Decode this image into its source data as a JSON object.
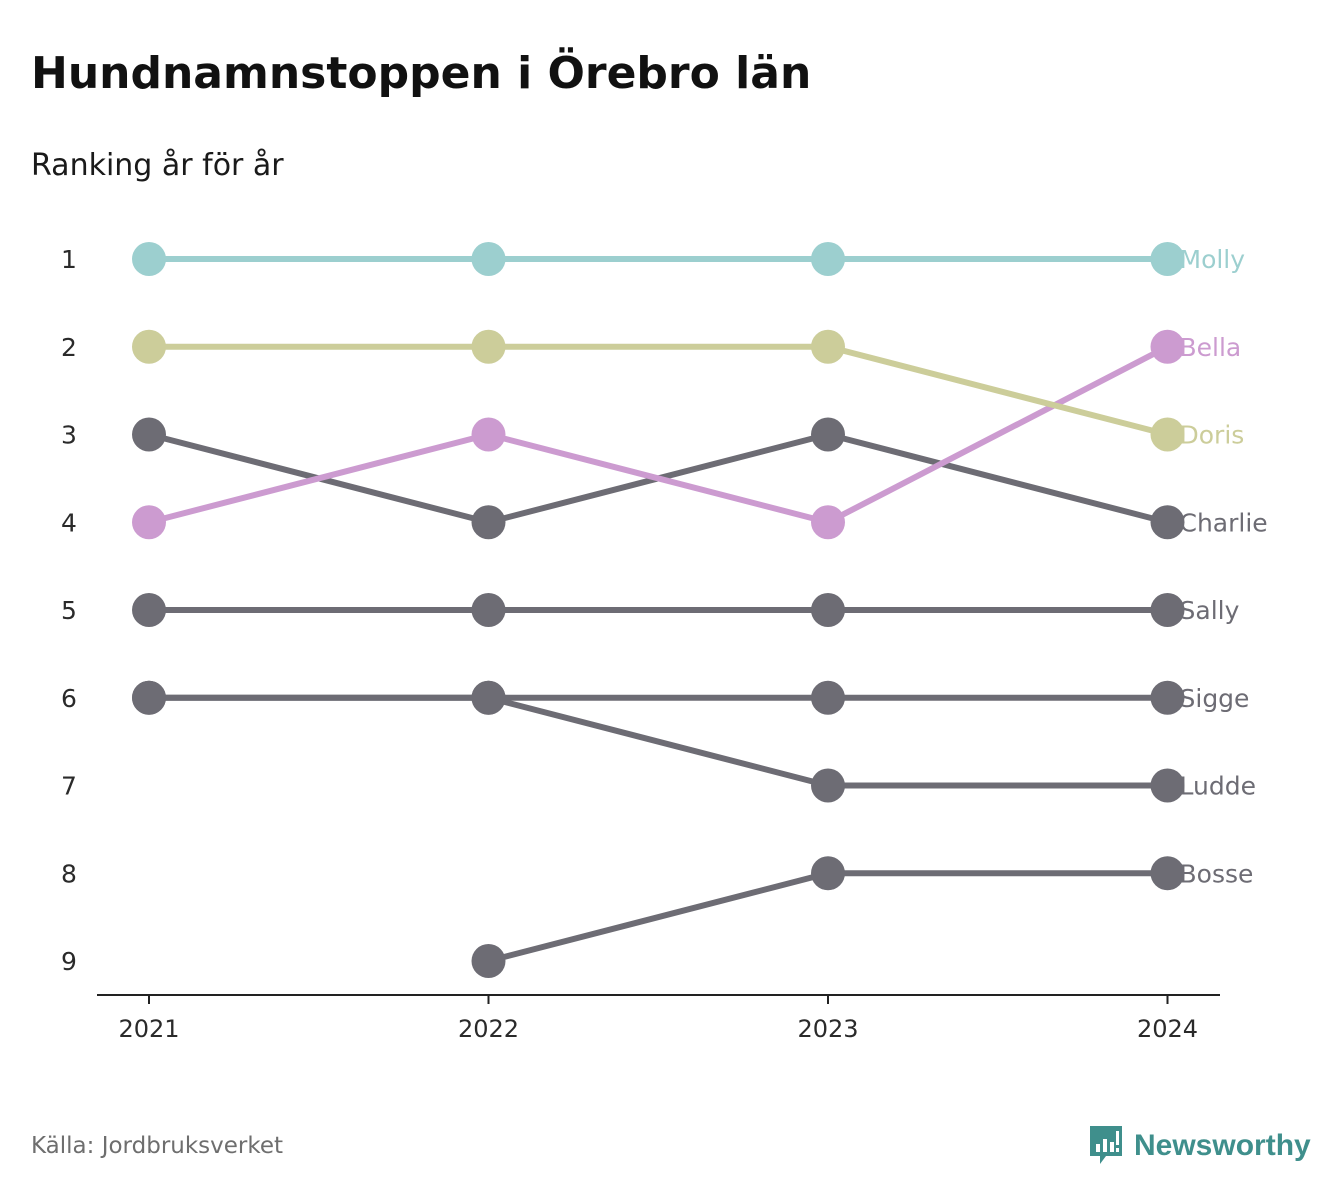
{
  "title": "Hundnamnstoppen i Örebro län",
  "subtitle": "Ranking år för år",
  "source": "Källa: Jordbruksverket",
  "brand": {
    "name": "Newsworthy",
    "icon": "newsworthy-bar-chart-icon",
    "color": "#3f8f8c"
  },
  "chart_data": {
    "type": "line",
    "title": "Hundnamnstoppen i Örebro län",
    "subtitle": "Ranking år för år",
    "x": [
      "2021",
      "2022",
      "2023",
      "2024"
    ],
    "y_ticks": [
      "1",
      "2",
      "3",
      "4",
      "5",
      "6",
      "7",
      "8",
      "9"
    ],
    "ylim": [
      1,
      9
    ],
    "y_inverted": true,
    "grid": false,
    "legend": "end-labels",
    "series": [
      {
        "name": "Molly",
        "color": "#9ccfcf",
        "values": [
          1,
          1,
          1,
          1
        ]
      },
      {
        "name": "Bella",
        "color": "#cc9bd0",
        "values": [
          4,
          3,
          4,
          2
        ]
      },
      {
        "name": "Doris",
        "color": "#cccd9a",
        "values": [
          2,
          2,
          2,
          3
        ]
      },
      {
        "name": "Charlie",
        "color": "#6d6c74",
        "values": [
          3,
          4,
          3,
          4
        ]
      },
      {
        "name": "Sally",
        "color": "#6d6c74",
        "values": [
          5,
          5,
          5,
          5
        ]
      },
      {
        "name": "Sigge",
        "color": "#6d6c74",
        "values": [
          6,
          6,
          6,
          6
        ]
      },
      {
        "name": "Ludde",
        "color": "#6d6c74",
        "values": [
          6,
          6,
          7,
          7
        ]
      },
      {
        "name": "Bosse",
        "color": "#6d6c74",
        "values": [
          null,
          9,
          8,
          8
        ]
      }
    ]
  }
}
